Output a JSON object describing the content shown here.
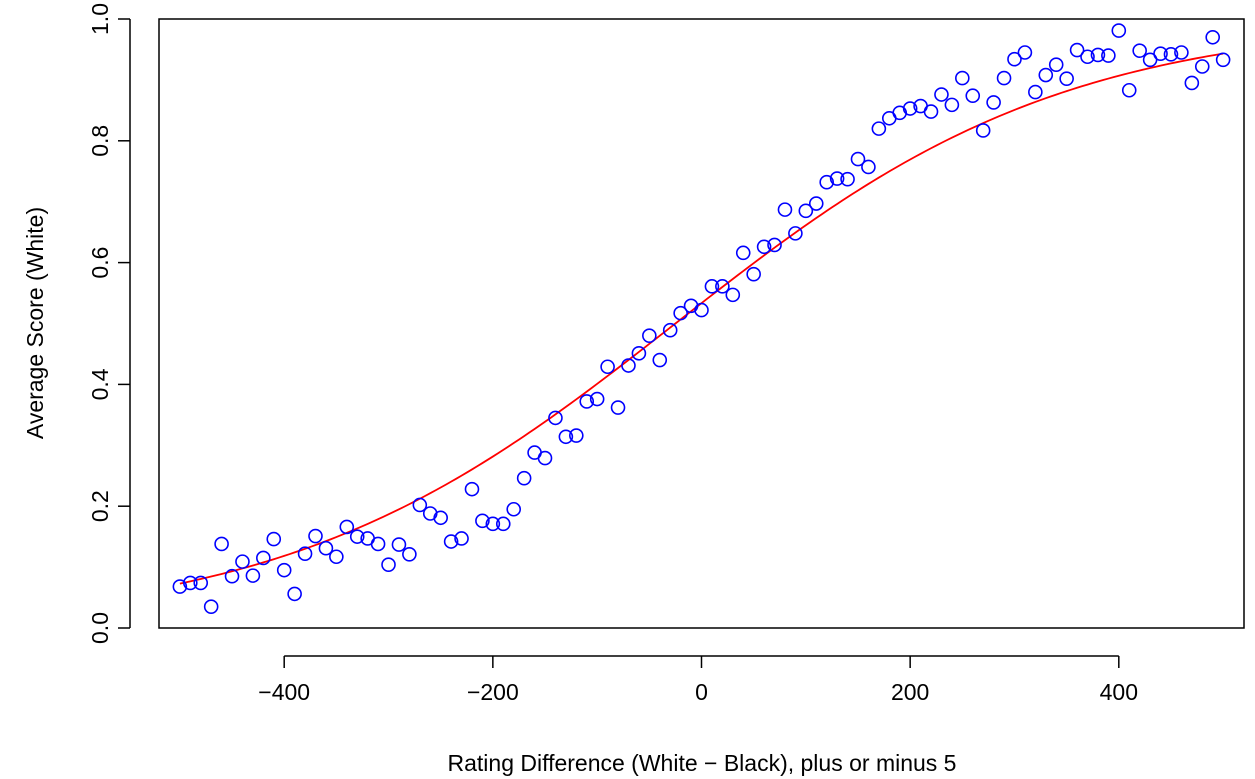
{
  "chart_data": {
    "type": "scatter",
    "title": "",
    "xlabel": "Rating Difference (White − Black), plus or minus 5",
    "ylabel": "Average Score (White)",
    "xlim": [
      -520,
      520
    ],
    "ylim": [
      0,
      1.0
    ],
    "x_ticks": [
      -400,
      -200,
      0,
      200,
      400
    ],
    "x_tick_labels": [
      "−400",
      "−200",
      "0",
      "200",
      "400"
    ],
    "y_ticks": [
      0.0,
      0.2,
      0.4,
      0.6,
      0.8,
      1.0
    ],
    "y_tick_labels": [
      "0.0",
      "0.2",
      "0.4",
      "0.6",
      "0.8",
      "1.0"
    ],
    "grid": false,
    "legend": "none",
    "colors": {
      "points": "#0000ff",
      "fit_line": "#ff0000",
      "axes": "#000000"
    },
    "series": [
      {
        "kind": "points",
        "x": [
          -500,
          -490,
          -480,
          -470,
          -460,
          -450,
          -440,
          -430,
          -420,
          -410,
          -400,
          -390,
          -380,
          -370,
          -360,
          -350,
          -340,
          -330,
          -320,
          -310,
          -300,
          -290,
          -280,
          -270,
          -260,
          -250,
          -240,
          -230,
          -220,
          -210,
          -200,
          -190,
          -180,
          -170,
          -160,
          -150,
          -140,
          -130,
          -120,
          -110,
          -100,
          -90,
          -80,
          -70,
          -60,
          -50,
          -40,
          -30,
          -20,
          -10,
          0,
          10,
          20,
          30,
          40,
          50,
          60,
          70,
          80,
          90,
          100,
          110,
          120,
          130,
          140,
          150,
          160,
          170,
          180,
          190,
          200,
          210,
          220,
          230,
          240,
          250,
          260,
          270,
          280,
          290,
          300,
          310,
          320,
          330,
          340,
          350,
          360,
          370,
          380,
          390,
          400,
          410,
          420,
          430,
          440,
          450,
          460,
          470,
          480,
          490,
          500
        ],
        "y": [
          0.068,
          0.074,
          0.074,
          0.035,
          0.138,
          0.085,
          0.109,
          0.086,
          0.115,
          0.146,
          0.095,
          0.056,
          0.122,
          0.151,
          0.131,
          0.117,
          0.166,
          0.15,
          0.147,
          0.138,
          0.104,
          0.137,
          0.121,
          0.202,
          0.188,
          0.181,
          0.142,
          0.147,
          0.228,
          0.176,
          0.171,
          0.171,
          0.195,
          0.246,
          0.288,
          0.279,
          0.345,
          0.314,
          0.316,
          0.372,
          0.376,
          0.429,
          0.362,
          0.431,
          0.451,
          0.48,
          0.44,
          0.489,
          0.517,
          0.529,
          0.522,
          0.561,
          0.561,
          0.547,
          0.616,
          0.581,
          0.626,
          0.629,
          0.687,
          0.648,
          0.685,
          0.697,
          0.732,
          0.738,
          0.737,
          0.77,
          0.757,
          0.82,
          0.837,
          0.846,
          0.853,
          0.857,
          0.848,
          0.876,
          0.859,
          0.903,
          0.874,
          0.817,
          0.863,
          0.903,
          0.934,
          0.945,
          0.88,
          0.908,
          0.925,
          0.902,
          0.949,
          0.938,
          0.941,
          0.94,
          0.981,
          0.883,
          0.948,
          0.933,
          0.943,
          0.942,
          0.945,
          0.895,
          0.922,
          0.97,
          0.933
        ]
      },
      {
        "kind": "fitted-logistic-curve",
        "x": [
          -500,
          -450,
          -400,
          -350,
          -300,
          -250,
          -200,
          -150,
          -100,
          -50,
          0,
          50,
          100,
          150,
          200,
          250,
          300,
          350,
          400,
          450,
          500
        ],
        "y": [
          0.041,
          0.054,
          0.07,
          0.091,
          0.117,
          0.15,
          0.19,
          0.238,
          0.293,
          0.353,
          0.418,
          0.486,
          0.553,
          0.617,
          0.677,
          0.731,
          0.778,
          0.818,
          0.852,
          0.88,
          0.97
        ]
      }
    ]
  }
}
